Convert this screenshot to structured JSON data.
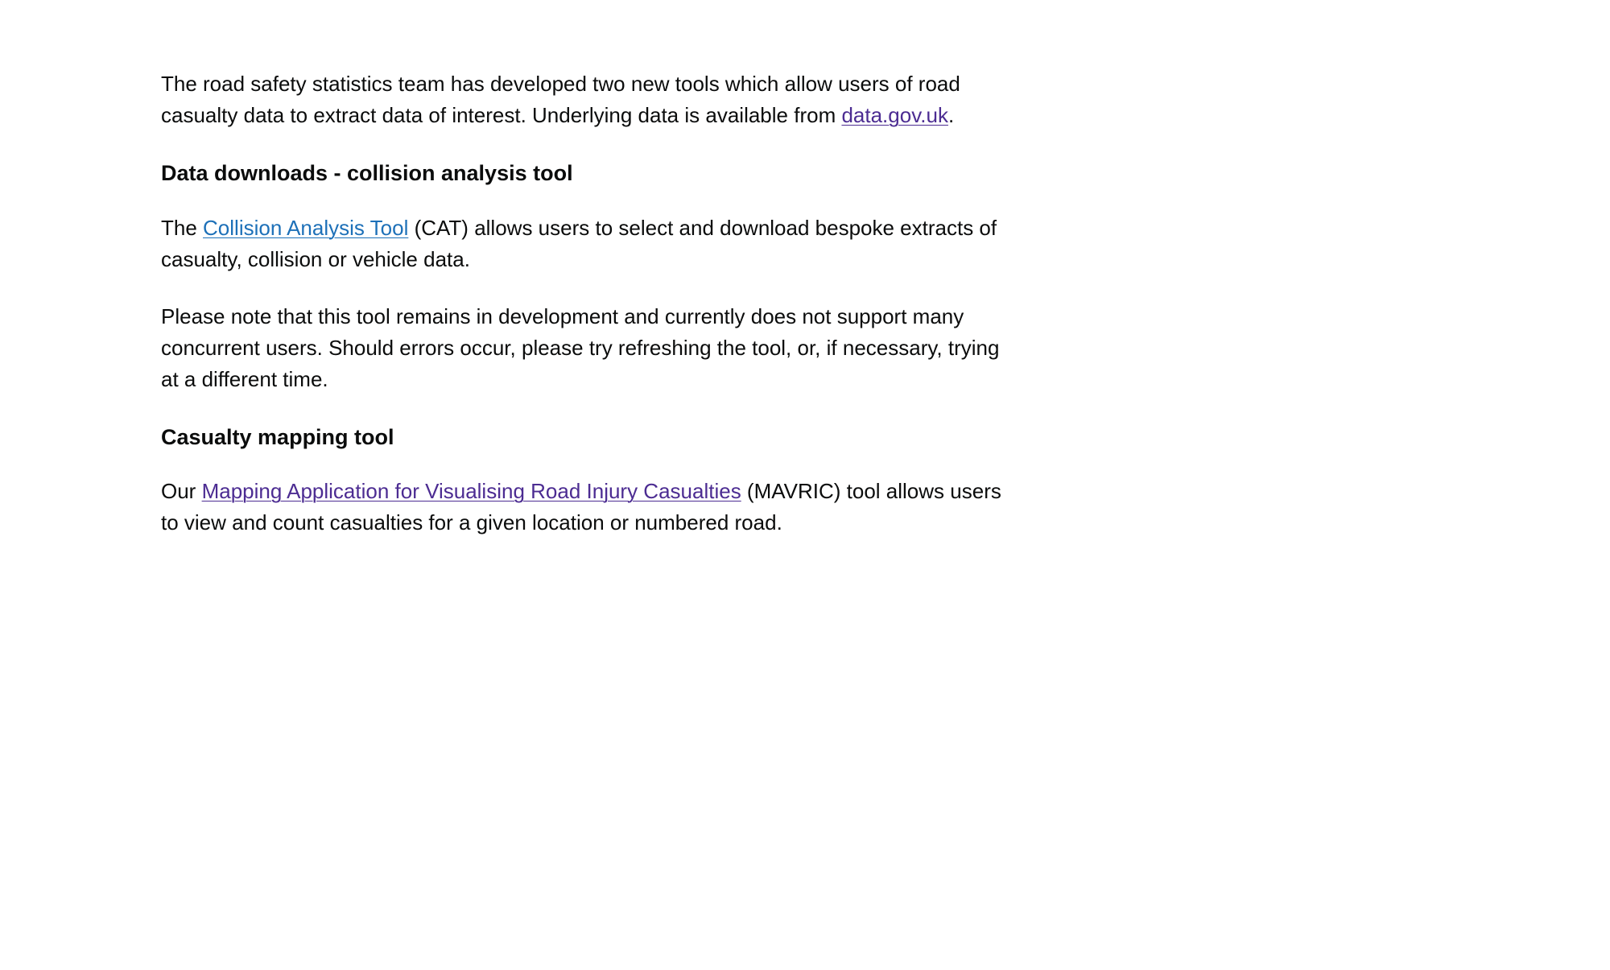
{
  "intro": {
    "text_before_link": "The road safety statistics team has developed two new tools which allow users of road casualty data to extract data of interest. Underlying data is available from ",
    "link_text": "data.gov.uk",
    "text_after_link": "."
  },
  "section1": {
    "heading": "Data downloads - collision analysis tool",
    "para1_before_link": "The ",
    "para1_link_text": "Collision Analysis Tool",
    "para1_after_link": " (CAT) allows users to select and download bespoke extracts of casualty, collision or vehicle data.",
    "para2": "Please note that this tool remains in development and currently does not support many concurrent users. Should errors occur, please try refreshing the tool, or, if necessary, trying at a different time."
  },
  "section2": {
    "heading": "Casualty mapping tool",
    "para1_before_link": "Our ",
    "para1_link_text": "Mapping Application for Visualising Road Injury Casualties",
    "para1_after_link": " (MAVRIC) tool allows users to view and count casualties for a given location or numbered road."
  },
  "colors": {
    "text": "#0b0c0c",
    "link_visited": "#4c2c92",
    "link_unvisited": "#1d70b8",
    "background": "#ffffff"
  }
}
